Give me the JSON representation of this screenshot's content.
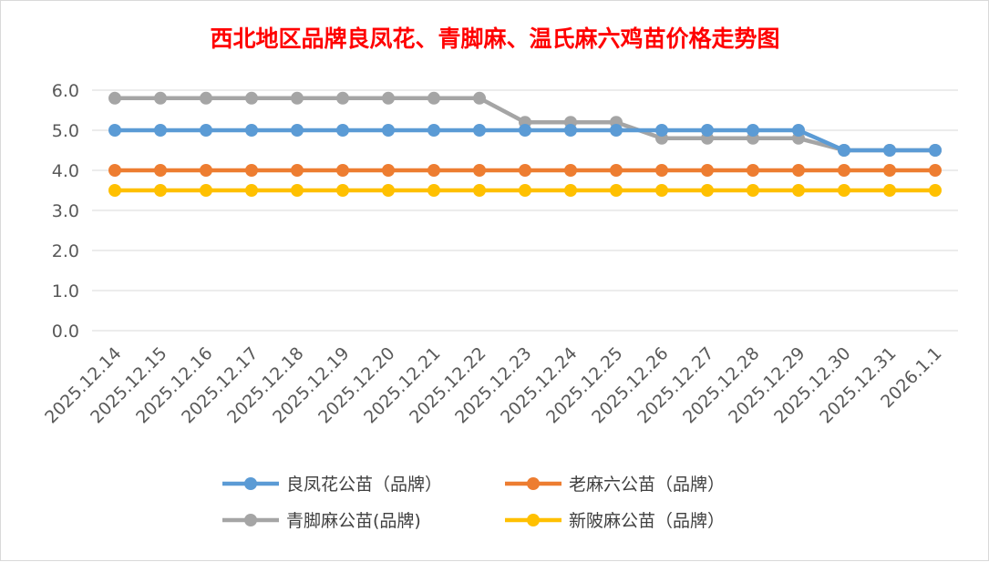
{
  "chart_data": {
    "type": "line",
    "title": "西北地区品牌良凤花、青脚麻、温氏麻六鸡苗价格走势图",
    "title_color": "#ff0000",
    "categories": [
      "2025.12.14",
      "2025.12.15",
      "2025.12.16",
      "2025.12.17",
      "2025.12.18",
      "2025.12.19",
      "2025.12.20",
      "2025.12.21",
      "2025.12.22",
      "2025.12.23",
      "2025.12.24",
      "2025.12.25",
      "2025.12.26",
      "2025.12.27",
      "2025.12.28",
      "2025.12.29",
      "2025.12.30",
      "2025.12.31",
      "2026.1.1"
    ],
    "ylim": [
      0,
      6
    ],
    "yticks": [
      "0.0",
      "1.0",
      "2.0",
      "3.0",
      "4.0",
      "5.0",
      "6.0"
    ],
    "grid": true,
    "legend_position": "bottom",
    "series": [
      {
        "name": "良凤花公苗（品牌）",
        "color": "#5b9bd5",
        "values": [
          5.0,
          5.0,
          5.0,
          5.0,
          5.0,
          5.0,
          5.0,
          5.0,
          5.0,
          5.0,
          5.0,
          5.0,
          5.0,
          5.0,
          5.0,
          5.0,
          4.5,
          4.5,
          4.5
        ]
      },
      {
        "name": "老麻六公苗（品牌）",
        "color": "#ed7d31",
        "values": [
          4.0,
          4.0,
          4.0,
          4.0,
          4.0,
          4.0,
          4.0,
          4.0,
          4.0,
          4.0,
          4.0,
          4.0,
          4.0,
          4.0,
          4.0,
          4.0,
          4.0,
          4.0,
          4.0
        ]
      },
      {
        "name": "青脚麻公苗(品牌)",
        "color": "#a5a5a5",
        "values": [
          5.8,
          5.8,
          5.8,
          5.8,
          5.8,
          5.8,
          5.8,
          5.8,
          5.8,
          5.2,
          5.2,
          5.2,
          4.8,
          4.8,
          4.8,
          4.8,
          4.5,
          4.5,
          4.5
        ]
      },
      {
        "name": "新陂麻公苗（品牌）",
        "color": "#ffc000",
        "values": [
          3.5,
          3.5,
          3.5,
          3.5,
          3.5,
          3.5,
          3.5,
          3.5,
          3.5,
          3.5,
          3.5,
          3.5,
          3.5,
          3.5,
          3.5,
          3.5,
          3.5,
          3.5,
          3.5
        ]
      }
    ]
  }
}
